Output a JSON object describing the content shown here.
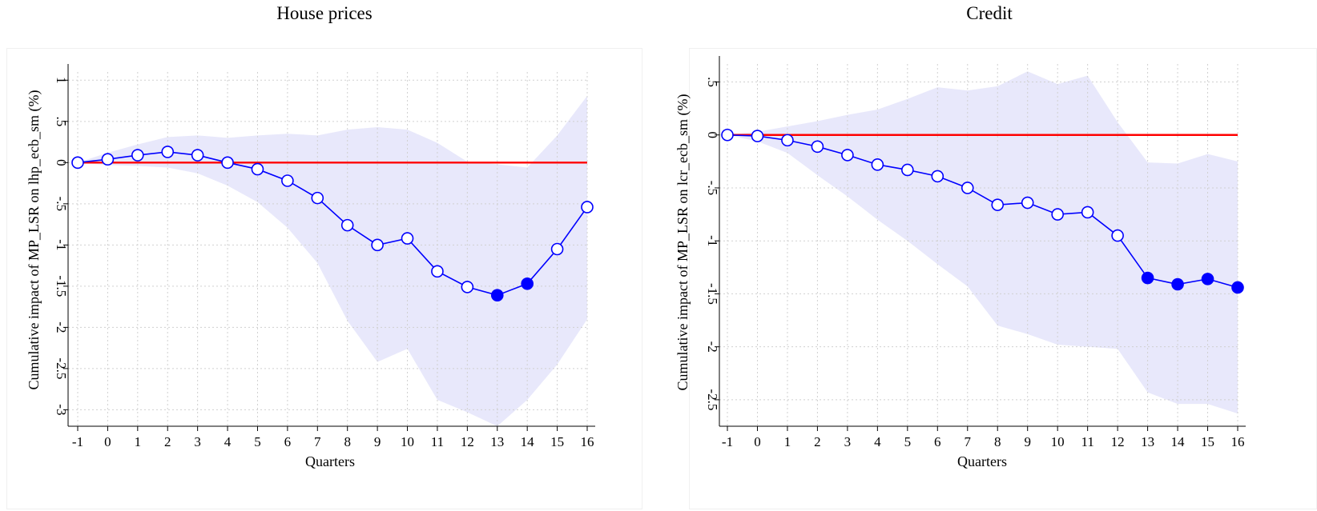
{
  "chart_data": [
    {
      "type": "line",
      "title": "House prices",
      "xlabel": "Quarters",
      "ylabel": "Cumulative impact of MP_LSR on lhp_ecb_sm (%)",
      "x": [
        -1,
        0,
        1,
        2,
        3,
        4,
        5,
        6,
        7,
        8,
        9,
        10,
        11,
        12,
        13,
        14,
        15,
        16
      ],
      "x_ticks": [
        "-1",
        "0",
        "1",
        "2",
        "3",
        "4",
        "5",
        "6",
        "7",
        "8",
        "9",
        "10",
        "11",
        "12",
        "13",
        "14",
        "15",
        "16"
      ],
      "y_ticks": [
        "1",
        ".5",
        "0",
        "-.5",
        "-1",
        "-1.5",
        "-2",
        "-2.5",
        "-3"
      ],
      "y_tick_values": [
        1,
        0.5,
        0,
        -0.5,
        -1,
        -1.5,
        -2,
        -2.5,
        -3
      ],
      "xlim": [
        -1,
        16
      ],
      "ylim": [
        -3.2,
        1.1
      ],
      "grid": true,
      "series": [
        {
          "values": [
            0,
            0.04,
            0.09,
            0.13,
            0.09,
            0.0,
            -0.08,
            -0.22,
            -0.43,
            -0.76,
            -1.0,
            -0.92,
            -1.32,
            -1.51,
            -1.61,
            -1.47,
            -1.05,
            -0.54
          ],
          "significant": [
            false,
            false,
            false,
            false,
            false,
            false,
            false,
            false,
            false,
            false,
            false,
            false,
            false,
            false,
            true,
            true,
            false,
            false
          ],
          "color": "#0000ff"
        }
      ],
      "band_upper": [
        0,
        0.12,
        0.22,
        0.31,
        0.33,
        0.3,
        0.33,
        0.35,
        0.33,
        0.4,
        0.43,
        0.4,
        0.24,
        0.01,
        -0.02,
        -0.06,
        0.33,
        0.81
      ],
      "band_lower": [
        0,
        -0.03,
        -0.04,
        -0.06,
        -0.13,
        -0.28,
        -0.48,
        -0.79,
        -1.22,
        -1.92,
        -2.42,
        -2.26,
        -2.88,
        -3.03,
        -3.2,
        -2.88,
        -2.45,
        -1.9
      ],
      "band_color": "#e8e8fb",
      "reference_line": {
        "y": 0,
        "color": "#ff0000"
      }
    },
    {
      "type": "line",
      "title": "Credit",
      "xlabel": "Quarters",
      "ylabel": "Cumulative impact of MP_LSR on lcr_ecb_sm (%)",
      "x": [
        -1,
        0,
        1,
        2,
        3,
        4,
        5,
        6,
        7,
        8,
        9,
        10,
        11,
        12,
        13,
        14,
        15,
        16
      ],
      "x_ticks": [
        "-1",
        "0",
        "1",
        "2",
        "3",
        "4",
        "5",
        "6",
        "7",
        "8",
        "9",
        "10",
        "11",
        "12",
        "13",
        "14",
        "15",
        "16"
      ],
      "y_ticks": [
        ".5",
        "0",
        "-.5",
        "-1",
        "-1.5",
        "-2",
        "-2.5"
      ],
      "y_tick_values": [
        0.5,
        0,
        -0.5,
        -1,
        -1.5,
        -2,
        -2.5
      ],
      "xlim": [
        -1,
        16
      ],
      "ylim": [
        -2.75,
        0.67
      ],
      "grid": true,
      "series": [
        {
          "values": [
            0,
            -0.01,
            -0.05,
            -0.11,
            -0.19,
            -0.28,
            -0.33,
            -0.39,
            -0.5,
            -0.66,
            -0.64,
            -0.75,
            -0.73,
            -0.95,
            -1.35,
            -1.41,
            -1.36,
            -1.44
          ],
          "significant": [
            false,
            false,
            false,
            false,
            false,
            false,
            false,
            false,
            false,
            false,
            false,
            false,
            false,
            false,
            true,
            true,
            true,
            true
          ],
          "color": "#0000ff"
        }
      ],
      "band_upper": [
        0,
        0.03,
        0.08,
        0.13,
        0.19,
        0.24,
        0.34,
        0.45,
        0.42,
        0.46,
        0.6,
        0.48,
        0.56,
        0.12,
        -0.26,
        -0.27,
        -0.18,
        -0.25
      ],
      "band_lower": [
        0,
        -0.06,
        -0.17,
        -0.38,
        -0.58,
        -0.8,
        -1.0,
        -1.22,
        -1.43,
        -1.8,
        -1.88,
        -1.98,
        -2.0,
        -2.02,
        -2.43,
        -2.54,
        -2.54,
        -2.63
      ],
      "band_color": "#e8e8fb",
      "reference_line": {
        "y": 0,
        "color": "#ff0000"
      }
    }
  ]
}
